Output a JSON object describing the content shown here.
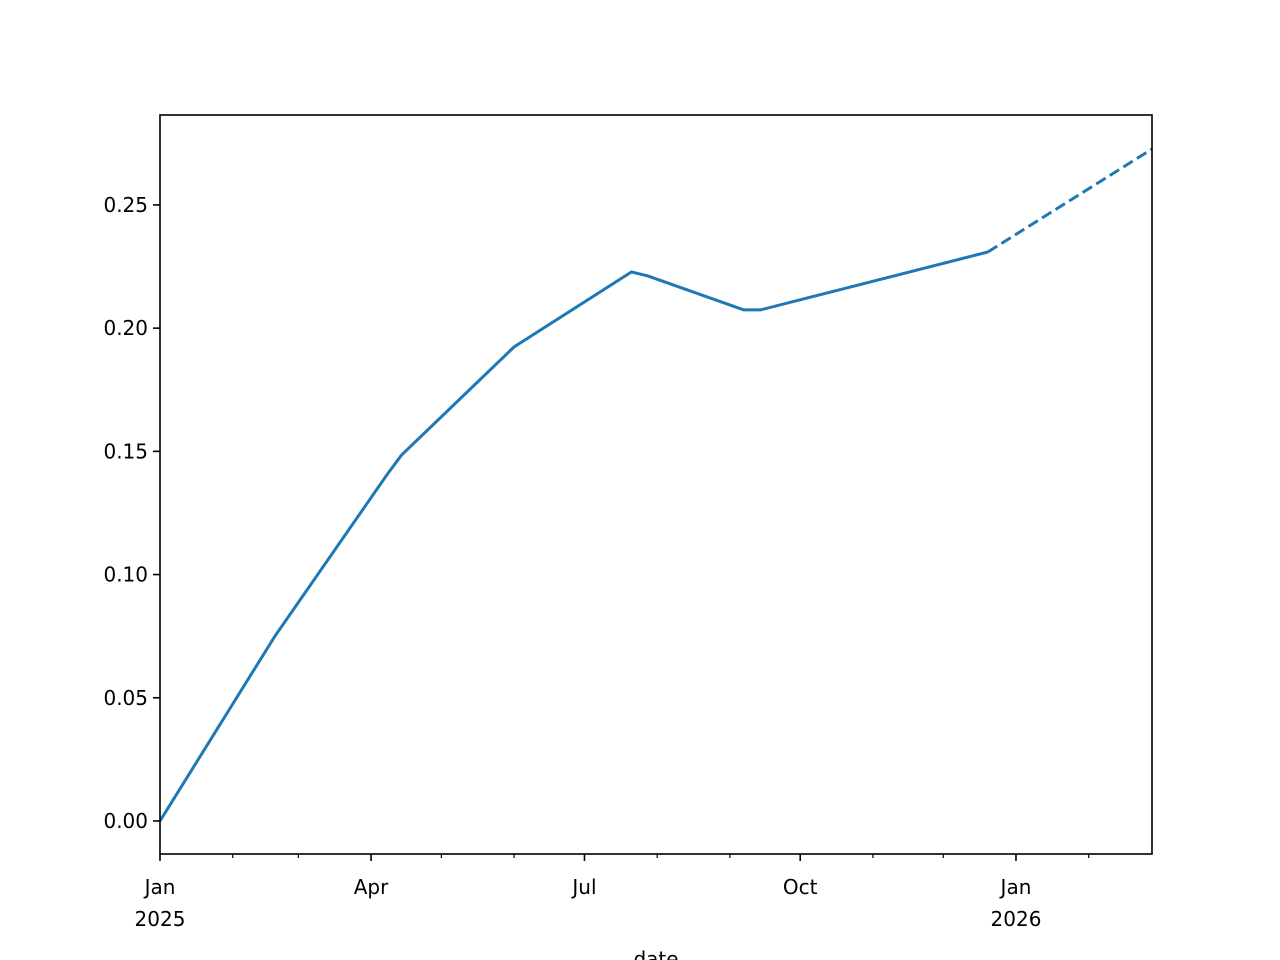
{
  "chart_data": {
    "type": "line",
    "x_label": "date",
    "series": [
      {
        "color": "#1f77b4",
        "linestyle": "solid",
        "x": [
          "2025-01-01",
          "2025-02-19",
          "2025-04-08",
          "2025-04-14",
          "2025-06-01",
          "2025-07-21",
          "2025-07-28",
          "2025-09-07",
          "2025-09-14",
          "2025-12-20"
        ],
        "values": [
          0,
          0.075,
          0.1408,
          0.1485,
          0.1924,
          0.2228,
          0.2212,
          0.2074,
          0.2074,
          0.2309
        ]
      },
      {
        "color": "#1f77b4",
        "linestyle": "dashed",
        "x": [
          "2025-12-20",
          "2026-02-28"
        ],
        "values": [
          0.2309,
          0.2727
        ]
      }
    ],
    "xlim": [
      "2025-01-01",
      "2026-02-28"
    ],
    "xticks": [
      {
        "value": "2025-01-01",
        "label": [
          "Jan",
          "2025"
        ]
      },
      {
        "value": "2025-04-01",
        "label": [
          "Apr"
        ]
      },
      {
        "value": "2025-07-01",
        "label": [
          "Jul"
        ]
      },
      {
        "value": "2025-10-01",
        "label": [
          "Oct"
        ]
      },
      {
        "value": "2026-01-01",
        "label": [
          "Jan",
          "2026"
        ]
      }
    ],
    "xminorticks": [
      "2025-02-01",
      "2025-03-01",
      "2025-05-01",
      "2025-06-01",
      "2025-08-01",
      "2025-09-01",
      "2025-11-01",
      "2025-12-01",
      "2026-02-01"
    ],
    "ylim": [
      -0.0134,
      0.2865
    ],
    "yticks": [
      {
        "value": 0,
        "label": "0.00"
      },
      0.05,
      {
        "value": 0.1,
        "label": "0.10"
      },
      0.15,
      {
        "value": 0.2,
        "label": "0.20"
      },
      0.25
    ]
  }
}
